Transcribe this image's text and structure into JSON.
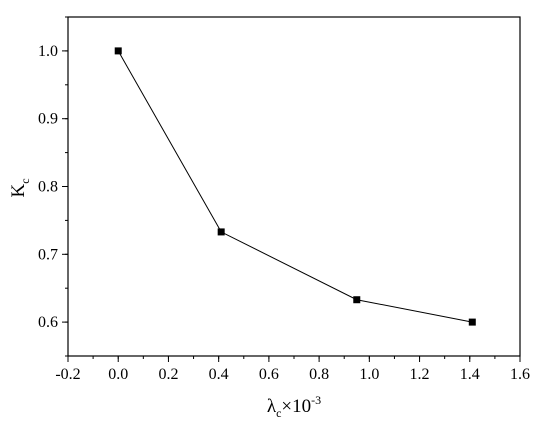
{
  "chart_data": {
    "type": "line",
    "title": "",
    "xlabel": {
      "base": "λ",
      "sub": "c",
      "rest": "×10",
      "sup": "-3"
    },
    "ylabel": {
      "base": "K",
      "sub": "c"
    },
    "xlim": [
      -0.2,
      1.6
    ],
    "ylim": [
      0.55,
      1.05
    ],
    "xticks": [
      -0.2,
      0.0,
      0.2,
      0.4,
      0.6,
      0.8,
      1.0,
      1.2,
      1.4,
      1.6
    ],
    "xtick_labels": [
      "-0.2",
      "0.0",
      "0.2",
      "0.4",
      "0.6",
      "0.8",
      "1.0",
      "1.2",
      "1.4",
      "1.6"
    ],
    "yticks": [
      0.6,
      0.7,
      0.8,
      0.9,
      1.0
    ],
    "ytick_labels": [
      "0.6",
      "0.7",
      "0.8",
      "0.9",
      "1.0"
    ],
    "grid": false,
    "legend": "none",
    "series": [
      {
        "x": [
          0.0,
          0.41,
          0.95,
          1.41
        ],
        "y": [
          1.0,
          0.733,
          0.633,
          0.6
        ],
        "marker": "square",
        "color": "#000000"
      }
    ]
  }
}
